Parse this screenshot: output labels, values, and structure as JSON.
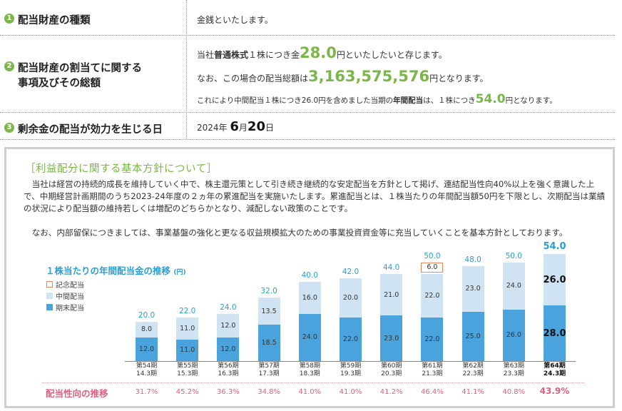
{
  "rows": [
    {
      "num": "1",
      "label": "配当財産の種類",
      "value": "金銭といたします。"
    },
    {
      "num": "2",
      "label_l1": "配当財産の割当てに関する",
      "label_l2": "事項及びその総額",
      "line1_pre": "当社",
      "line1_bold": "普通株式",
      "line1_mid": "１株につき金",
      "line1_big": "28.0",
      "line1_post": "円といたしたいと存じます。",
      "line2_pre": "なお、この場合の配当総額は",
      "line2_big": "3,163,575,576",
      "line2_post": "円となります。",
      "line3_pre": "これにより中間配当１株につき26.0円を含めました当期の",
      "line3_bold": "年間配当",
      "line3_mid": "は、１株につき",
      "line3_big": "54.0",
      "line3_post": "円となります。"
    },
    {
      "num": "3",
      "label": "剰余金の配当が効力を生じる日",
      "year": "2024年",
      "month": "6",
      "month_unit": "月",
      "day": "20",
      "day_unit": "日"
    }
  ],
  "policy": {
    "title": "［利益配分に関する基本方針について］",
    "p1": "　当社は経営の持続的成長を維持していく中で、株主還元策として引き続き継続的な安定配当を方針として掲げ、連結配当性向40%以上を強く意識した上で、中期経営計画期間のうち2023-24年度の２ヵ年の累進配当を実施いたします。累進配当とは、１株当たりの年間配当額50円を下限とし、次期配当は業績の状況により配当額の維持若しくは増配のどちらかとなり、減配しない政策のことです。",
    "p2": "　なお、内部留保につきましては、事業基盤の強化と更なる収益規模拡大のための事業投資資金等に充当していくことを基本方針としております。"
  },
  "chart_data": {
    "type": "bar",
    "title": "１株当たりの年間配当金の推移",
    "unit": "(円)",
    "legend": [
      "記念配当",
      "中間配当",
      "期末配当"
    ],
    "colors": {
      "記念配当": "#e58a5c",
      "中間配当": "#cfe3f2",
      "期末配当": "#4aa3dc"
    },
    "categories": [
      [
        "第54期",
        "14.3期"
      ],
      [
        "第55期",
        "15.3期"
      ],
      [
        "第56期",
        "16.3期"
      ],
      [
        "第57期",
        "17.3期"
      ],
      [
        "第58期",
        "18.3期"
      ],
      [
        "第59期",
        "19.3期"
      ],
      [
        "第60期",
        "20.3期"
      ],
      [
        "第61期",
        "21.3期"
      ],
      [
        "第62期",
        "22.3期"
      ],
      [
        "第63期",
        "23.3期"
      ],
      [
        "第64期",
        "24.3期"
      ]
    ],
    "series": [
      {
        "name": "期末配当",
        "values": [
          12.0,
          11.0,
          12.0,
          18.5,
          24.0,
          22.0,
          23.0,
          22.0,
          25.0,
          26.0,
          28.0
        ]
      },
      {
        "name": "中間配当",
        "values": [
          8.0,
          11.0,
          12.0,
          13.5,
          16.0,
          20.0,
          21.0,
          22.0,
          23.0,
          24.0,
          26.0
        ]
      },
      {
        "name": "記念配当",
        "values": [
          0,
          0,
          0,
          0,
          0,
          0,
          0,
          6.0,
          0,
          0,
          0
        ]
      }
    ],
    "totals": [
      20.0,
      22.0,
      24.0,
      32.0,
      40.0,
      42.0,
      44.0,
      50.0,
      48.0,
      50.0,
      54.0
    ],
    "ylim": [
      0,
      60
    ],
    "payout_label": "配当性向の推移",
    "payout_ratio": [
      "31.7%",
      "45.2%",
      "36.3%",
      "34.8%",
      "41.0%",
      "41.0%",
      "41.2%",
      "46.4%",
      "41.1%",
      "40.8%",
      "43.9%"
    ]
  }
}
